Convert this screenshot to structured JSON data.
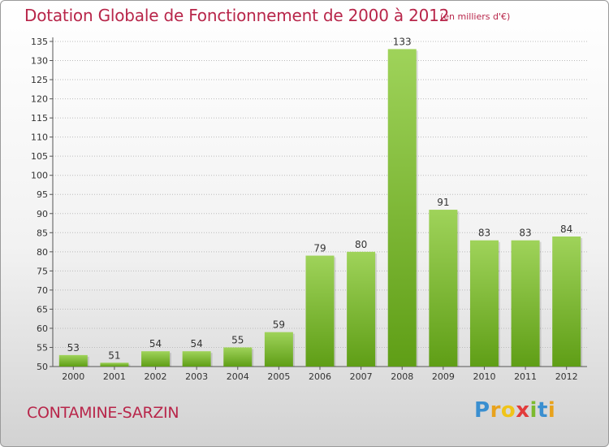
{
  "header": {
    "title": "Dotation Globale de Fonctionnement de 2000 à 2012",
    "unit_note": "(en milliers d'€)"
  },
  "footer": {
    "commune": "CONTAMINE-SARZIN",
    "logo_letters": [
      "P",
      "r",
      "o",
      "x",
      "i",
      "t",
      "i"
    ],
    "logo_colors": [
      "#3a8fd0",
      "#e8a21c",
      "#f0c419",
      "#e23b3b",
      "#7cba2e",
      "#3a8fd0",
      "#e8a21c"
    ]
  },
  "colors": {
    "title": "#b8264a",
    "bar_light": "#9fd35a",
    "bar_dark": "#5f9e16",
    "grid": "#bbbbbb"
  },
  "chart_data": {
    "type": "bar",
    "categories": [
      "2000",
      "2001",
      "2002",
      "2003",
      "2004",
      "2005",
      "2006",
      "2007",
      "2008",
      "2009",
      "2010",
      "2011",
      "2012"
    ],
    "values": [
      53,
      51,
      54,
      54,
      55,
      59,
      79,
      80,
      133,
      91,
      83,
      83,
      84
    ],
    "ylim": [
      50,
      135
    ],
    "yticks": [
      50,
      55,
      60,
      65,
      70,
      75,
      80,
      85,
      90,
      95,
      100,
      105,
      110,
      115,
      120,
      125,
      130,
      135
    ],
    "grid": true,
    "data_labels": true
  }
}
